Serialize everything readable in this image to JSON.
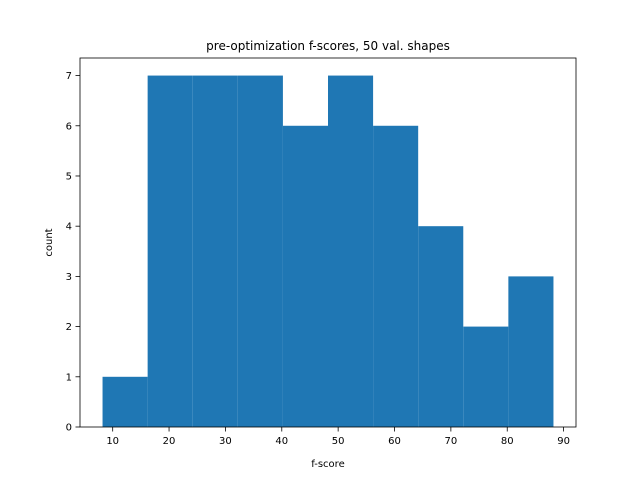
{
  "chart_data": {
    "type": "histogram",
    "title": "pre-optimization f-scores, 50 val. shapes",
    "xlabel": "f-score",
    "ylabel": "count",
    "bins": [
      8.2,
      16.2,
      24.2,
      32.2,
      40.2,
      48.2,
      56.2,
      64.2,
      72.2,
      80.2,
      88.2
    ],
    "counts": [
      1,
      7,
      7,
      7,
      6,
      7,
      6,
      4,
      2,
      3
    ],
    "xlim": [
      4.2,
      92.2
    ],
    "ylim": [
      0,
      7.35
    ],
    "xticks": [
      10,
      20,
      30,
      40,
      50,
      60,
      70,
      80,
      90
    ],
    "yticks": [
      0,
      1,
      2,
      3,
      4,
      5,
      6,
      7
    ],
    "grid": false,
    "bar_color": "#1f77b4"
  }
}
